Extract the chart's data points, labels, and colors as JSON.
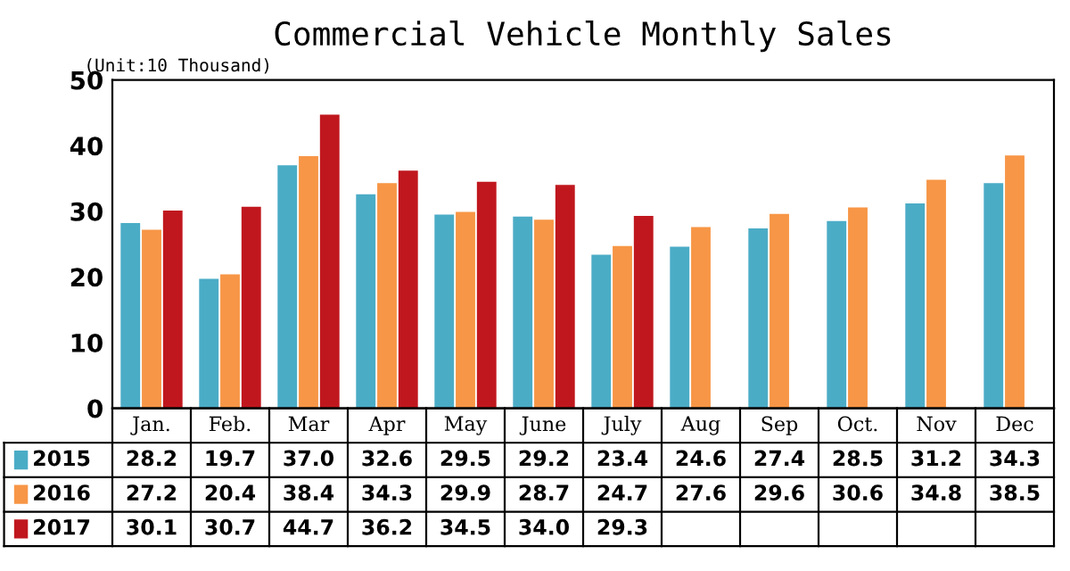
{
  "chart_data": {
    "type": "bar",
    "title": "Commercial Vehicle Monthly Sales",
    "annotations": [
      "(Unit:10 Thousand)"
    ],
    "categories": [
      "Jan.",
      "Feb.",
      "Mar",
      "Apr",
      "May",
      "June",
      "July",
      "Aug",
      "Sep",
      "Oct.",
      "Nov",
      "Dec"
    ],
    "series": [
      {
        "name": "2015",
        "color": "#4bacc6",
        "values": [
          28.2,
          19.7,
          37.0,
          32.6,
          29.5,
          29.2,
          23.4,
          24.6,
          27.4,
          28.5,
          31.2,
          34.3
        ],
        "value_labels": [
          "28.2",
          "19.7",
          "37.0",
          "32.6",
          "29.5",
          "29.2",
          "23.4",
          "24.6",
          "27.4",
          "28.5",
          "31.2",
          "34.3"
        ]
      },
      {
        "name": "2016",
        "color": "#f79646",
        "values": [
          27.2,
          20.4,
          38.4,
          34.3,
          29.9,
          28.7,
          24.7,
          27.6,
          29.6,
          30.6,
          34.8,
          38.5
        ],
        "value_labels": [
          "27.2",
          "20.4",
          "38.4",
          "34.3",
          "29.9",
          "28.7",
          "24.7",
          "27.6",
          "29.6",
          "30.6",
          "34.8",
          "38.5"
        ]
      },
      {
        "name": "2017",
        "color": "#c0171e",
        "values": [
          30.1,
          30.7,
          44.7,
          36.2,
          34.5,
          34.0,
          29.3,
          null,
          null,
          null,
          null,
          null
        ],
        "value_labels": [
          "30.1",
          "30.7",
          "44.7",
          "36.2",
          "34.5",
          "34.0",
          "29.3",
          null,
          null,
          null,
          null,
          null
        ]
      }
    ],
    "ylim": [
      0,
      50
    ],
    "yticks": [
      0,
      10,
      20,
      30,
      40,
      50
    ],
    "grid": false,
    "legend": "bottom left"
  }
}
